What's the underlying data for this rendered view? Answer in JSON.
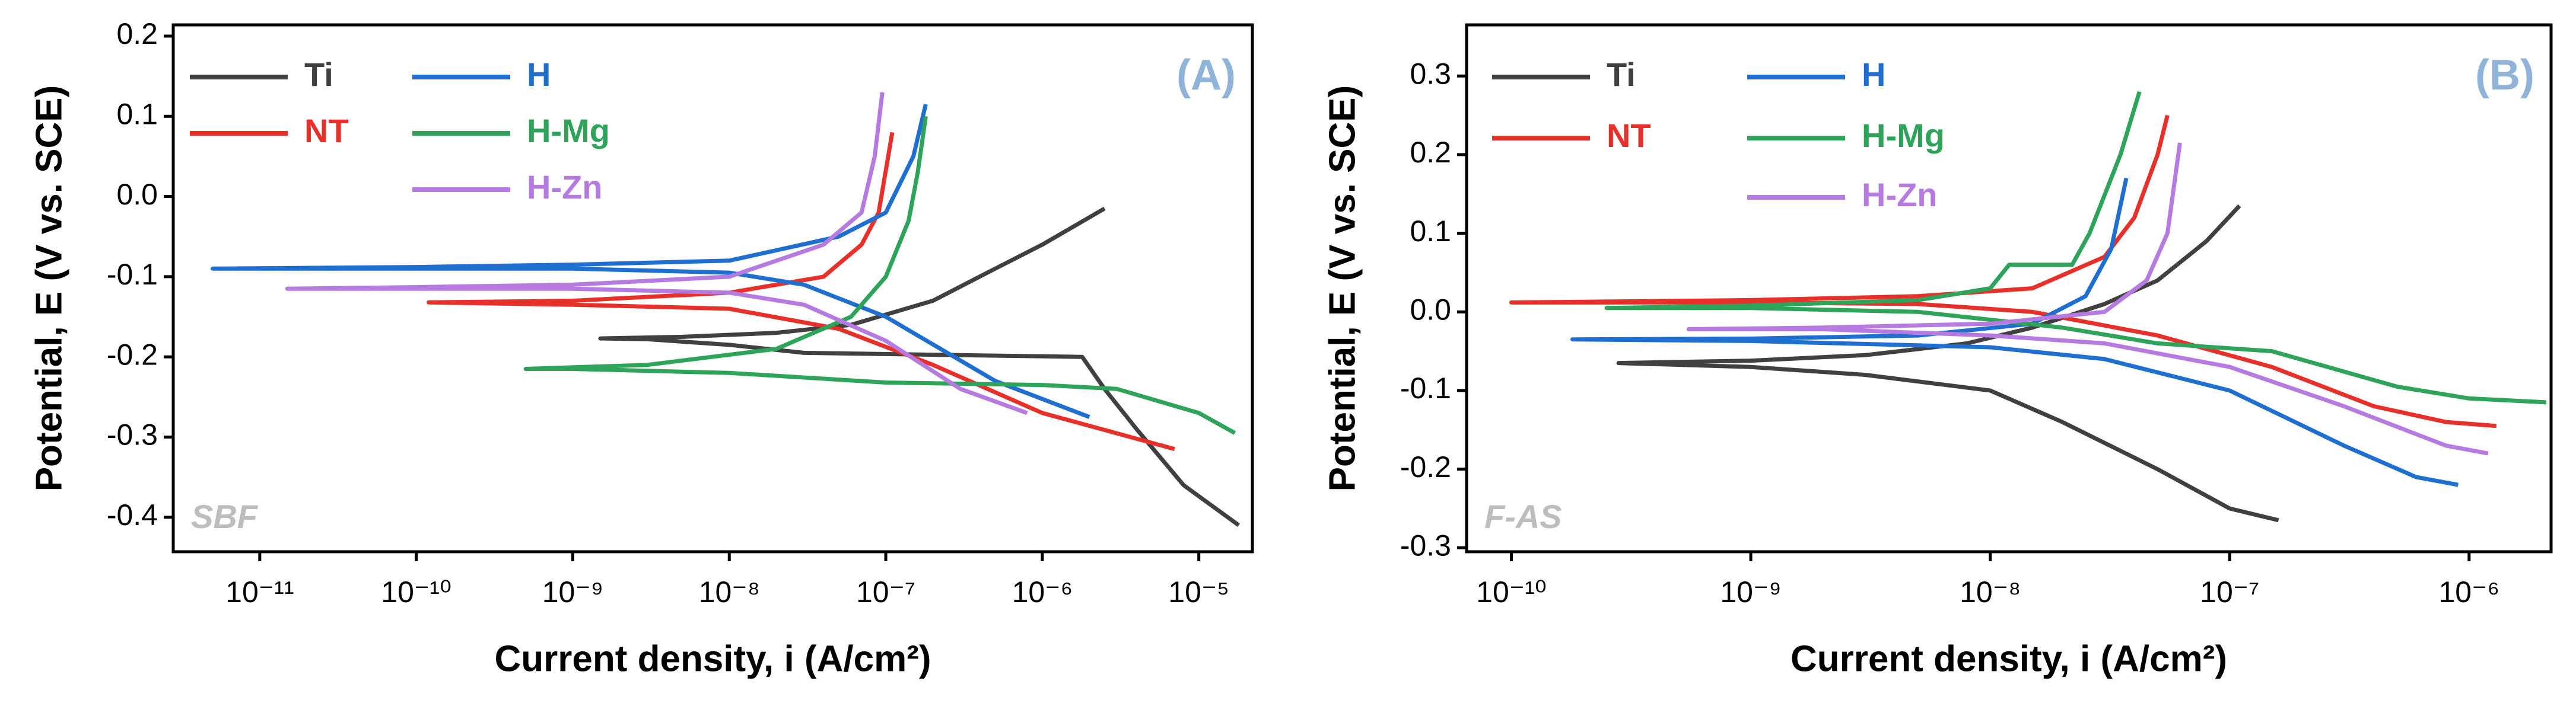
{
  "chart_data": [
    {
      "type": "line",
      "title": "(A)",
      "annotation": "SBF",
      "xlabel": "Current density, i (A/cm²)",
      "ylabel": "Potential, E (V vs. SCE)",
      "xscale": "log",
      "xlim": [
        2.8e-12,
        2.2e-05
      ],
      "ylim": [
        -0.443,
        0.214
      ],
      "xticks": [
        {
          "value": 1e-11,
          "label": "10⁻¹¹"
        },
        {
          "value": 1e-10,
          "label": "10⁻¹⁰"
        },
        {
          "value": 1e-09,
          "label": "10⁻⁹"
        },
        {
          "value": 1e-08,
          "label": "10⁻⁸"
        },
        {
          "value": 1e-07,
          "label": "10⁻⁷"
        },
        {
          "value": 1e-06,
          "label": "10⁻⁶"
        },
        {
          "value": 1e-05,
          "label": "10⁻⁵"
        }
      ],
      "yticks": [
        -0.4,
        -0.3,
        -0.2,
        -0.1,
        {
          "value": 0,
          "label": "0.0"
        },
        0.1,
        0.2
      ],
      "series": [
        {
          "name": "Ti",
          "color": "#404040",
          "x": [
            1.8e-05,
            8e-06,
            4e-06,
            2.5e-06,
            1.8e-06,
            3e-08,
            1e-08,
            3e-09,
            1.5e-09,
            5e-09,
            2e-08,
            6e-08,
            2e-07,
            5e-07,
            1e-06,
            2.5e-06
          ],
          "values": [
            -0.41,
            -0.36,
            -0.29,
            -0.24,
            -0.2,
            -0.195,
            -0.185,
            -0.178,
            -0.177,
            -0.175,
            -0.17,
            -0.16,
            -0.13,
            -0.09,
            -0.06,
            -0.015
          ]
        },
        {
          "name": "NT",
          "color": "#e8302a",
          "x": [
            7e-06,
            1e-06,
            2e-07,
            5e-08,
            1e-08,
            1e-09,
            1.2e-10,
            1e-09,
            1e-08,
            4e-08,
            7e-08,
            9e-08,
            1.1e-07
          ],
          "values": [
            -0.315,
            -0.27,
            -0.21,
            -0.165,
            -0.14,
            -0.135,
            -0.132,
            -0.13,
            -0.12,
            -0.1,
            -0.06,
            -0.02,
            0.08
          ]
        },
        {
          "name": "H",
          "color": "#1f6fd1",
          "x": [
            2e-06,
            5e-07,
            1e-07,
            3e-08,
            1e-08,
            1e-09,
            5e-12,
            1e-10,
            1e-09,
            1e-08,
            5e-08,
            1e-07,
            1.5e-07,
            1.8e-07
          ],
          "values": [
            -0.275,
            -0.23,
            -0.15,
            -0.11,
            -0.095,
            -0.09,
            -0.09,
            -0.088,
            -0.085,
            -0.08,
            -0.05,
            -0.02,
            0.05,
            0.115
          ]
        },
        {
          "name": "H-Mg",
          "color": "#2ea35a",
          "x": [
            1.7e-05,
            1e-05,
            3e-06,
            1e-06,
            1e-07,
            1e-08,
            1e-09,
            5e-10,
            3e-09,
            2e-08,
            6e-08,
            1e-07,
            1.4e-07,
            1.6e-07,
            1.8e-07
          ],
          "values": [
            -0.295,
            -0.27,
            -0.24,
            -0.235,
            -0.232,
            -0.22,
            -0.215,
            -0.215,
            -0.21,
            -0.19,
            -0.15,
            -0.1,
            -0.03,
            0.03,
            0.1
          ]
        },
        {
          "name": "H-Zn",
          "color": "#b57be0",
          "x": [
            8e-07,
            3e-07,
            1e-07,
            3e-08,
            1e-08,
            1e-09,
            1.5e-11,
            1e-10,
            1e-09,
            1e-08,
            4e-08,
            7e-08,
            8.5e-08,
            9.5e-08
          ],
          "values": [
            -0.27,
            -0.24,
            -0.18,
            -0.135,
            -0.12,
            -0.115,
            -0.115,
            -0.113,
            -0.11,
            -0.1,
            -0.06,
            -0.02,
            0.05,
            0.13
          ]
        }
      ]
    },
    {
      "type": "line",
      "title": "(B)",
      "annotation": "F-AS",
      "xlabel": "Current density, i (A/cm²)",
      "ylabel": "Potential, E (V vs. SCE)",
      "xscale": "log",
      "xlim": [
        6.5e-11,
        2.2e-06
      ],
      "ylim": [
        -0.305,
        0.365
      ],
      "xticks": [
        {
          "value": 1e-10,
          "label": "10⁻¹⁰"
        },
        {
          "value": 1e-09,
          "label": "10⁻⁹"
        },
        {
          "value": 1e-08,
          "label": "10⁻⁸"
        },
        {
          "value": 1e-07,
          "label": "10⁻⁷"
        },
        {
          "value": 1e-06,
          "label": "10⁻⁶"
        }
      ],
      "yticks": [
        -0.3,
        -0.2,
        -0.1,
        {
          "value": 0,
          "label": "0.0"
        },
        0.1,
        0.2,
        0.3
      ],
      "series": [
        {
          "name": "Ti",
          "color": "#404040",
          "x": [
            1.6e-07,
            1e-07,
            5e-08,
            2e-08,
            1e-08,
            3e-09,
            1e-09,
            2.8e-10,
            1e-09,
            3e-09,
            8e-09,
            1.5e-08,
            3e-08,
            5e-08,
            8e-08,
            1.1e-07
          ],
          "values": [
            -0.265,
            -0.25,
            -0.2,
            -0.14,
            -0.1,
            -0.08,
            -0.07,
            -0.065,
            -0.062,
            -0.055,
            -0.04,
            -0.02,
            0.01,
            0.04,
            0.09,
            0.135
          ]
        },
        {
          "name": "NT",
          "color": "#e8302a",
          "x": [
            1.3e-06,
            8e-07,
            4e-07,
            1.5e-07,
            5e-08,
            1.5e-08,
            5e-09,
            1e-09,
            1e-10,
            1e-09,
            5e-09,
            1.5e-08,
            3e-08,
            4e-08,
            5e-08,
            5.5e-08
          ],
          "values": [
            -0.145,
            -0.14,
            -0.12,
            -0.07,
            -0.03,
            0.0,
            0.01,
            0.012,
            0.012,
            0.015,
            0.02,
            0.03,
            0.07,
            0.12,
            0.2,
            0.25
          ]
        },
        {
          "name": "H",
          "color": "#1f6fd1",
          "x": [
            9e-07,
            6e-07,
            3e-07,
            1e-07,
            3e-08,
            1e-08,
            1e-09,
            1.8e-10,
            1e-09,
            5e-09,
            1.5e-08,
            2.5e-08,
            3.2e-08,
            3.7e-08
          ],
          "values": [
            -0.22,
            -0.21,
            -0.17,
            -0.1,
            -0.06,
            -0.045,
            -0.037,
            -0.035,
            -0.034,
            -0.03,
            -0.015,
            0.02,
            0.08,
            0.17
          ]
        },
        {
          "name": "H-Mg",
          "color": "#2ea35a",
          "x": [
            2.1e-06,
            1e-06,
            5e-07,
            1.5e-07,
            5e-08,
            2e-08,
            5e-09,
            1e-09,
            2.5e-10,
            1e-09,
            5e-09,
            1e-08,
            1.2e-08,
            2.2e-08,
            2.6e-08,
            3.5e-08,
            4.2e-08
          ],
          "values": [
            -0.115,
            -0.11,
            -0.095,
            -0.05,
            -0.04,
            -0.02,
            0.0,
            0.005,
            0.005,
            0.008,
            0.015,
            0.03,
            0.06,
            0.06,
            0.1,
            0.2,
            0.28
          ]
        },
        {
          "name": "H-Zn",
          "color": "#b57be0",
          "x": [
            1.2e-06,
            8e-07,
            3e-07,
            1e-07,
            3e-08,
            1e-08,
            2e-09,
            5.5e-10,
            2e-09,
            1e-08,
            3e-08,
            4.5e-08,
            5.5e-08,
            6.2e-08
          ],
          "values": [
            -0.18,
            -0.17,
            -0.12,
            -0.07,
            -0.04,
            -0.03,
            -0.022,
            -0.022,
            -0.02,
            -0.015,
            0.0,
            0.04,
            0.1,
            0.215
          ]
        }
      ]
    }
  ]
}
